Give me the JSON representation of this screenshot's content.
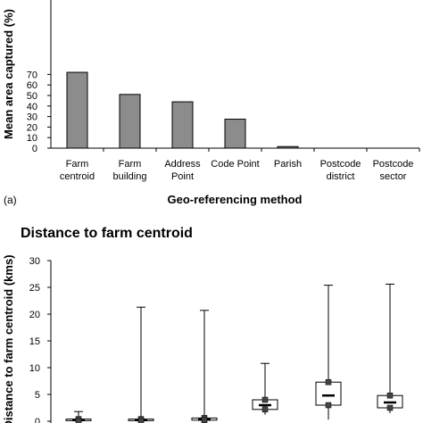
{
  "chart_data": [
    {
      "type": "bar",
      "panel_label": "(a)",
      "categories": [
        [
          "Farm",
          "centroid"
        ],
        [
          "Farm",
          "building"
        ],
        [
          "Address",
          "Point"
        ],
        [
          "Code Point"
        ],
        [
          "Parish"
        ],
        [
          "Postcode",
          "district"
        ],
        [
          "Postcode",
          "sector"
        ]
      ],
      "values": [
        72,
        51,
        44,
        27.5,
        1.5,
        0,
        0
      ],
      "xlabel": "Geo-referencing method",
      "ylabel": "Mean area captured (%)",
      "yticks": [
        0,
        10,
        20,
        30,
        40,
        50,
        60,
        70
      ],
      "ylim": [
        0,
        80
      ],
      "bar_color": "#8c8c8c"
    },
    {
      "type": "box",
      "title": "Distance to farm centroid",
      "ylabel": "Distance to farm centroid (kms)",
      "yticks": [
        0,
        5,
        10,
        15,
        20,
        25,
        30
      ],
      "ylim": [
        0,
        30
      ],
      "series": [
        {
          "min": 0,
          "q1": 0.1,
          "median": 0.2,
          "q3": 0.4,
          "max": 1.8
        },
        {
          "min": 0,
          "q1": 0.1,
          "median": 0.2,
          "q3": 0.4,
          "max": 21.3
        },
        {
          "min": 0,
          "q1": 0.2,
          "median": 0.3,
          "q3": 0.6,
          "max": 20.7
        },
        {
          "min": 1.2,
          "q1": 2.2,
          "median": 3.0,
          "q3": 4.0,
          "max": 10.8
        },
        {
          "min": 0.3,
          "q1": 3.0,
          "median": 4.8,
          "q3": 7.3,
          "max": 25.4
        },
        {
          "min": 1.5,
          "q1": 2.5,
          "median": 3.5,
          "q3": 4.8,
          "max": 25.6
        }
      ]
    }
  ]
}
